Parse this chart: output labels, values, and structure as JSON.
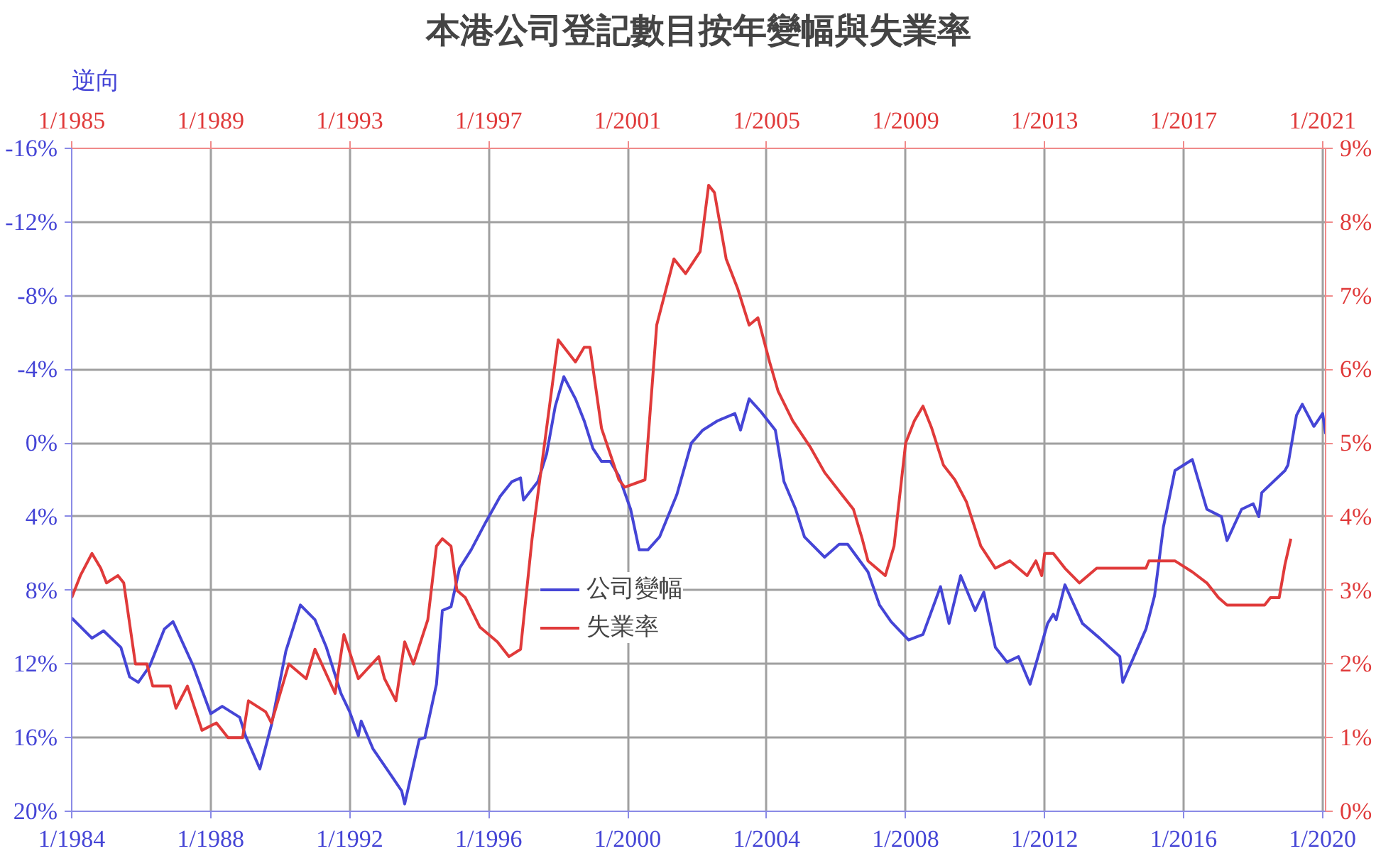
{
  "chart_data": {
    "type": "line",
    "title": "本港公司登記數目按年變幅與失業率",
    "annotations": [
      "逆向"
    ],
    "xlim": [
      "1984-01",
      "2020-02"
    ],
    "xticks": [
      {
        "value": "1984-01",
        "label": "1/1984"
      },
      {
        "value": "1988-01",
        "label": "1/1988"
      },
      {
        "value": "1992-01",
        "label": "1/1992"
      },
      {
        "value": "1996-01",
        "label": "1/1996"
      },
      {
        "value": "2000-01",
        "label": "1/2000"
      },
      {
        "value": "2004-01",
        "label": "1/2004"
      },
      {
        "value": "2008-01",
        "label": "1/2008"
      },
      {
        "value": "2012-01",
        "label": "1/2012"
      },
      {
        "value": "2016-01",
        "label": "1/2016"
      },
      {
        "value": "2020-01",
        "label": "1/2020"
      }
    ],
    "x2lim": [
      "1985-01",
      "2021-02"
    ],
    "x2ticks": [
      {
        "value": "1985-01",
        "label": "1/1985"
      },
      {
        "value": "1989-01",
        "label": "1/1989"
      },
      {
        "value": "1993-01",
        "label": "1/1993"
      },
      {
        "value": "1997-01",
        "label": "1/1997"
      },
      {
        "value": "2001-01",
        "label": "1/2001"
      },
      {
        "value": "2005-01",
        "label": "1/2005"
      },
      {
        "value": "2009-01",
        "label": "1/2009"
      },
      {
        "value": "2013-01",
        "label": "1/2013"
      },
      {
        "value": "2017-01",
        "label": "1/2017"
      },
      {
        "value": "2021-01",
        "label": "1/2021"
      }
    ],
    "ylim": [
      20,
      -16
    ],
    "yticks": [
      {
        "value": -16,
        "label": "-16%"
      },
      {
        "value": -12,
        "label": "-12%"
      },
      {
        "value": -8,
        "label": "-8%"
      },
      {
        "value": -4,
        "label": "-4%"
      },
      {
        "value": 0,
        "label": "0%"
      },
      {
        "value": 4,
        "label": "4%"
      },
      {
        "value": 8,
        "label": "8%"
      },
      {
        "value": 12,
        "label": "12%"
      },
      {
        "value": 16,
        "label": "16%"
      },
      {
        "value": 20,
        "label": "20%"
      }
    ],
    "y2lim": [
      0,
      9
    ],
    "y2ticks": [
      {
        "value": 0,
        "label": "0%"
      },
      {
        "value": 1,
        "label": "1%"
      },
      {
        "value": 2,
        "label": "2%"
      },
      {
        "value": 3,
        "label": "3%"
      },
      {
        "value": 4,
        "label": "4%"
      },
      {
        "value": 5,
        "label": "5%"
      },
      {
        "value": 6,
        "label": "6%"
      },
      {
        "value": 7,
        "label": "7%"
      },
      {
        "value": 8,
        "label": "8%"
      },
      {
        "value": 9,
        "label": "9%"
      }
    ],
    "grid": true,
    "legend": "center",
    "line_style": "solid",
    "series": [
      {
        "name": "公司變幅",
        "color": "#4545d6",
        "x": [
          "1984-01",
          "1984-08",
          "1984-12",
          "1985-06",
          "1985-09",
          "1985-12",
          "1986-04",
          "1986-09",
          "1986-12",
          "1987-02",
          "1987-07",
          "1988-01",
          "1988-05",
          "1988-11",
          "1989-01",
          "1989-06",
          "1989-10",
          "1990-03",
          "1990-08",
          "1991-01",
          "1991-05",
          "1991-10",
          "1992-01",
          "1992-04",
          "1992-05",
          "1992-09",
          "1993-04",
          "1993-07",
          "1993-08",
          "1994-01",
          "1994-03",
          "1994-07",
          "1994-09",
          "1994-12",
          "1995-03",
          "1995-07",
          "1995-12",
          "1996-05",
          "1996-09",
          "1996-12",
          "1997-01",
          "1997-06",
          "1997-09",
          "1997-12",
          "1998-03",
          "1998-07",
          "1998-10",
          "1999-01",
          "1999-04",
          "1999-07",
          "1999-10",
          "2000-02",
          "2000-05",
          "2000-08",
          "2000-12",
          "2001-06",
          "2001-11",
          "2002-03",
          "2002-08",
          "2003-02",
          "2003-04",
          "2003-07",
          "2003-11",
          "2004-04",
          "2004-07",
          "2004-11",
          "2005-02",
          "2005-09",
          "2006-02",
          "2006-05",
          "2006-12",
          "2007-04",
          "2007-08",
          "2008-02",
          "2008-07",
          "2009-01",
          "2009-04",
          "2009-08",
          "2010-01",
          "2010-04",
          "2010-08",
          "2010-12",
          "2011-04",
          "2011-08",
          "2012-02",
          "2012-04",
          "2012-05",
          "2012-08",
          "2013-02",
          "2013-08",
          "2014-03",
          "2014-04",
          "2014-12",
          "2015-03",
          "2015-06",
          "2015-10",
          "2016-04",
          "2016-09",
          "2017-02",
          "2017-04",
          "2017-09",
          "2018-01",
          "2018-03",
          "2018-04",
          "2018-12",
          "2019-01",
          "2019-04",
          "2019-06",
          "2019-10",
          "2020-01",
          "2020-02"
        ],
        "values": [
          9.5,
          10.6,
          10.2,
          11.1,
          12.7,
          13.0,
          12.1,
          10.1,
          9.7,
          10.4,
          12.1,
          14.7,
          14.3,
          14.9,
          15.9,
          17.7,
          15.3,
          11.3,
          8.8,
          9.6,
          11.1,
          13.6,
          14.6,
          15.9,
          15.1,
          16.6,
          18.2,
          18.9,
          19.6,
          16.1,
          16.0,
          13.1,
          9.1,
          8.9,
          6.8,
          5.8,
          4.3,
          2.9,
          2.1,
          1.9,
          3.1,
          2.1,
          0.6,
          -2.0,
          -3.6,
          -2.4,
          -1.2,
          0.3,
          1.0,
          1.0,
          1.8,
          3.6,
          5.8,
          5.8,
          5.1,
          2.8,
          0.0,
          -0.7,
          -1.2,
          -1.6,
          -0.7,
          -2.4,
          -1.7,
          -0.7,
          2.1,
          3.6,
          5.1,
          6.2,
          5.5,
          5.5,
          7.0,
          8.8,
          9.7,
          10.7,
          10.4,
          7.8,
          9.8,
          7.2,
          9.1,
          8.1,
          11.1,
          11.9,
          11.6,
          13.1,
          9.8,
          9.3,
          9.6,
          7.7,
          9.8,
          10.6,
          11.6,
          13.0,
          10.1,
          8.3,
          4.6,
          1.5,
          0.9,
          3.6,
          4.0,
          5.3,
          3.6,
          3.3,
          4.0,
          2.7,
          1.5,
          1.2,
          -1.5,
          -2.1,
          -0.9,
          -1.6,
          -0.5
        ]
      },
      {
        "name": "失業率",
        "color": "#e03a3a",
        "axis": "y2",
        "x": [
          "1984-01",
          "1984-04",
          "1984-08",
          "1984-11",
          "1985-01",
          "1985-05",
          "1985-07",
          "1985-11",
          "1986-03",
          "1986-05",
          "1986-11",
          "1987-01",
          "1987-05",
          "1987-10",
          "1988-03",
          "1988-07",
          "1988-12",
          "1989-02",
          "1989-08",
          "1989-10",
          "1990-04",
          "1990-10",
          "1991-01",
          "1991-08",
          "1991-11",
          "1992-04",
          "1992-11",
          "1993-01",
          "1993-05",
          "1993-08",
          "1993-11",
          "1994-04",
          "1994-07",
          "1994-09",
          "1994-12",
          "1995-02",
          "1995-05",
          "1995-10",
          "1996-04",
          "1996-08",
          "1996-12",
          "1997-04",
          "1997-08",
          "1998-01",
          "1998-07",
          "1998-10",
          "1998-12",
          "1999-04",
          "1999-10",
          "1999-12",
          "2000-07",
          "2000-11",
          "2001-05",
          "2001-09",
          "2002-02",
          "2002-05",
          "2002-07",
          "2002-11",
          "2003-03",
          "2003-07",
          "2003-10",
          "2004-02",
          "2004-05",
          "2004-10",
          "2005-04",
          "2005-09",
          "2006-03",
          "2006-07",
          "2006-10",
          "2006-12",
          "2007-06",
          "2007-09",
          "2008-01",
          "2008-04",
          "2008-07",
          "2008-10",
          "2009-02",
          "2009-06",
          "2009-10",
          "2010-03",
          "2010-08",
          "2011-01",
          "2011-07",
          "2011-10",
          "2011-12",
          "2012-01",
          "2012-04",
          "2012-08",
          "2013-01",
          "2013-07",
          "2014-12",
          "2015-01",
          "2015-10",
          "2016-04",
          "2016-09",
          "2017-01",
          "2017-04",
          "2018-05",
          "2018-07",
          "2018-10",
          "2018-12",
          "2019-02"
        ],
        "values": [
          2.9,
          3.2,
          3.5,
          3.3,
          3.1,
          3.2,
          3.1,
          2.0,
          2.0,
          1.7,
          1.7,
          1.4,
          1.7,
          1.1,
          1.2,
          1.0,
          1.0,
          1.5,
          1.35,
          1.2,
          2.0,
          1.8,
          2.2,
          1.6,
          2.4,
          1.8,
          2.1,
          1.8,
          1.5,
          2.3,
          2.0,
          2.6,
          3.6,
          3.7,
          3.6,
          3.0,
          2.9,
          2.5,
          2.3,
          2.1,
          2.2,
          3.7,
          4.9,
          6.4,
          6.1,
          6.3,
          6.3,
          5.2,
          4.5,
          4.4,
          4.5,
          6.6,
          7.5,
          7.3,
          7.6,
          8.5,
          8.4,
          7.5,
          7.1,
          6.6,
          6.7,
          6.1,
          5.7,
          5.3,
          4.95,
          4.6,
          4.3,
          4.1,
          3.7,
          3.4,
          3.2,
          3.6,
          5.0,
          5.3,
          5.5,
          5.2,
          4.7,
          4.5,
          4.2,
          3.6,
          3.3,
          3.4,
          3.2,
          3.4,
          3.2,
          3.5,
          3.5,
          3.3,
          3.1,
          3.3,
          3.3,
          3.4,
          3.4,
          3.25,
          3.1,
          2.9,
          2.8,
          2.8,
          2.9,
          2.9,
          3.35,
          3.7
        ]
      }
    ]
  }
}
